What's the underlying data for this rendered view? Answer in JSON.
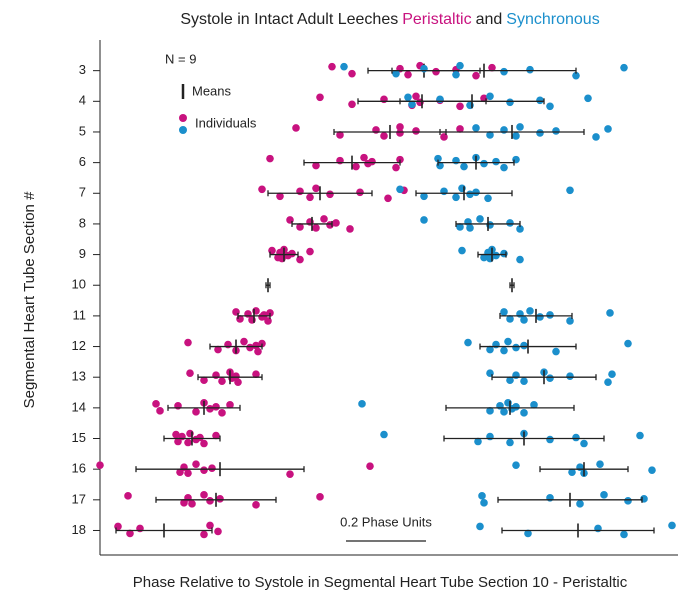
{
  "chart_data": {
    "type": "dot_strip",
    "title": "Systole in Intact Adult Leeches",
    "title_joiner": "and",
    "x_label": "Phase Relative to Systole in Segmental Heart Tube Section 10 - Peristaltic",
    "y_label": "Segmental Heart Tube Section #",
    "annotation": "N = 9",
    "legend": {
      "means": "Means",
      "individuals": "Individuals"
    },
    "scale_bar": {
      "label": "0.2 Phase Units",
      "length": 0.2
    },
    "xlim": [
      -0.42,
      1.025
    ],
    "ylim": [
      2,
      18.8
    ],
    "y_inverted": true,
    "yticks": [
      3,
      4,
      5,
      6,
      7,
      8,
      9,
      10,
      11,
      12,
      13,
      14,
      15,
      16,
      17,
      18
    ],
    "series": [
      {
        "name": "Peristaltic",
        "color": "#c8127f",
        "means": [
          0.39,
          0.385,
          0.305,
          0.21,
          0.13,
          0.11,
          0.04,
          0,
          -0.035,
          -0.08,
          -0.095,
          -0.16,
          -0.19,
          -0.12,
          -0.13,
          -0.26
        ],
        "sd": [
          0.14,
          0.16,
          0.14,
          0.12,
          0.13,
          0.05,
          0.035,
          0.005,
          0.04,
          0.065,
          0.08,
          0.09,
          0.07,
          0.21,
          0.15,
          0.12
        ],
        "points": [
          [
            0.16,
            0.21,
            0.33,
            0.35,
            0.38,
            0.42,
            0.47,
            0.52,
            0.56
          ],
          [
            0.13,
            0.21,
            0.29,
            0.36,
            0.37,
            0.38,
            0.43,
            0.48,
            0.54
          ],
          [
            0.07,
            0.18,
            0.27,
            0.29,
            0.33,
            0.33,
            0.37,
            0.44,
            0.48
          ],
          [
            0.005,
            0.12,
            0.18,
            0.22,
            0.24,
            0.25,
            0.26,
            0.32,
            0.33
          ],
          [
            -0.015,
            0.03,
            0.08,
            0.105,
            0.12,
            0.155,
            0.23,
            0.3,
            0.34
          ],
          [
            0.055,
            0.08,
            0.105,
            0.12,
            0.14,
            0.155,
            0.17,
            0.205
          ],
          [
            0.01,
            0.025,
            0.03,
            0.035,
            0.04,
            0.05,
            0.06,
            0.08,
            0.105
          ],
          [],
          [
            -0.08,
            -0.07,
            -0.05,
            -0.04,
            -0.03,
            -0.015,
            -0.01,
            0,
            0.005
          ],
          [
            -0.2,
            -0.125,
            -0.1,
            -0.08,
            -0.06,
            -0.045,
            -0.03,
            -0.025,
            -0.015
          ],
          [
            -0.195,
            -0.16,
            -0.13,
            -0.115,
            -0.095,
            -0.09,
            -0.08,
            -0.075,
            -0.03
          ],
          [
            -0.28,
            -0.27,
            -0.225,
            -0.18,
            -0.16,
            -0.145,
            -0.13,
            -0.115,
            -0.095
          ],
          [
            -0.23,
            -0.225,
            -0.215,
            -0.2,
            -0.195,
            -0.18,
            -0.17,
            -0.16,
            -0.13
          ],
          [
            -0.42,
            -0.22,
            -0.21,
            -0.2,
            -0.18,
            -0.16,
            -0.14,
            0.055,
            0.255
          ],
          [
            -0.35,
            -0.21,
            -0.2,
            -0.19,
            -0.16,
            -0.145,
            -0.12,
            -0.03,
            0.13
          ],
          [
            -0.375,
            -0.345,
            -0.32,
            -0.16,
            -0.145,
            -0.125
          ]
        ]
      },
      {
        "name": "Synchronous",
        "color": "#1b8fcc",
        "means": [
          0.54,
          0.51,
          0.61,
          0.52,
          0.49,
          0.55,
          0.56,
          0.61,
          0.67,
          0.65,
          0.69,
          0.605,
          0.64,
          0.79,
          0.755,
          0.775
        ],
        "sd": [
          0.23,
          0.18,
          0.18,
          0.095,
          0.12,
          0.08,
          0.035,
          0.005,
          0.09,
          0.12,
          0.13,
          0.16,
          0.2,
          0.11,
          0.18,
          0.19
        ],
        "points": [
          [
            0.19,
            0.32,
            0.39,
            0.47,
            0.48,
            0.59,
            0.655,
            0.77,
            0.89
          ],
          [
            0.35,
            0.36,
            0.43,
            0.505,
            0.555,
            0.605,
            0.68,
            0.705,
            0.8
          ],
          [
            0.52,
            0.555,
            0.59,
            0.62,
            0.63,
            0.68,
            0.72,
            0.82,
            0.85
          ],
          [
            0.425,
            0.43,
            0.47,
            0.49,
            0.52,
            0.54,
            0.57,
            0.59,
            0.62
          ],
          [
            0.33,
            0.39,
            0.44,
            0.47,
            0.485,
            0.505,
            0.52,
            0.55,
            0.755
          ],
          [
            0.39,
            0.48,
            0.5,
            0.505,
            0.53,
            0.555,
            0.605,
            0.63
          ],
          [
            0.485,
            0.54,
            0.55,
            0.555,
            0.56,
            0.57,
            0.59,
            0.63
          ],
          [],
          [
            0.59,
            0.605,
            0.63,
            0.64,
            0.655,
            0.68,
            0.705,
            0.755,
            0.855
          ],
          [
            0.5,
            0.555,
            0.57,
            0.59,
            0.6,
            0.62,
            0.64,
            0.72,
            0.9
          ],
          [
            0.555,
            0.605,
            0.62,
            0.64,
            0.69,
            0.705,
            0.755,
            0.85,
            0.86
          ],
          [
            0.235,
            0.555,
            0.58,
            0.59,
            0.6,
            0.61,
            0.62,
            0.64,
            0.665
          ],
          [
            0.29,
            0.525,
            0.555,
            0.605,
            0.64,
            0.705,
            0.77,
            0.79,
            0.93
          ],
          [
            0.62,
            0.76,
            0.78,
            0.79,
            0.83,
            0.96
          ],
          [
            0.535,
            0.54,
            0.705,
            0.78,
            0.84,
            0.9,
            0.94
          ],
          [
            0.53,
            0.65,
            0.825,
            0.89,
            1.01
          ]
        ]
      }
    ]
  }
}
